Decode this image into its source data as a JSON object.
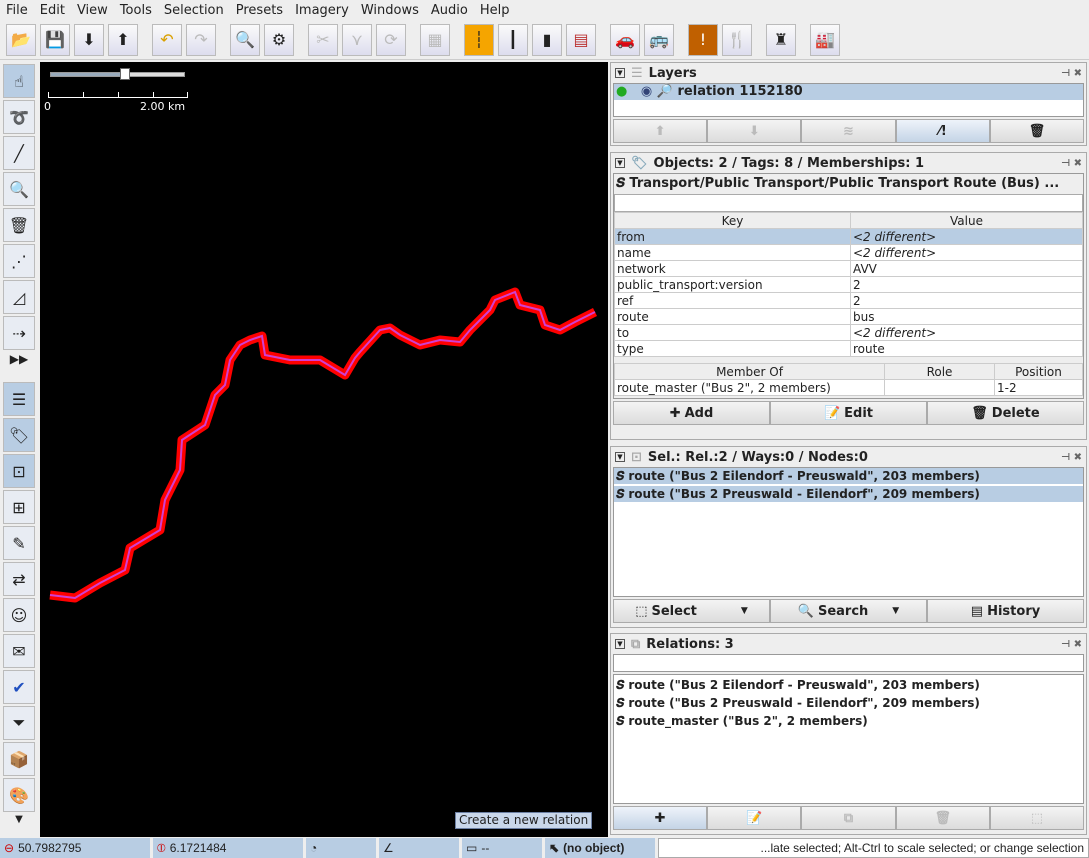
{
  "menu": [
    "File",
    "Edit",
    "View",
    "Tools",
    "Selection",
    "Presets",
    "Imagery",
    "Windows",
    "Audio",
    "Help"
  ],
  "map": {
    "scale_start": "0",
    "scale_end": "2.00 km",
    "zoom_level": 0.55,
    "route_color": "#ff0000",
    "route_inner_color": "#d040d0"
  },
  "layers": {
    "title": "Layers",
    "items": [
      {
        "name": "relation 1152180",
        "visible": true,
        "active": true
      }
    ]
  },
  "objects": {
    "title": "Objects: 2 / Tags: 8 / Memberships: 1",
    "preset": "Transport/Public Transport/Public Transport Route (Bus) ...",
    "headers": [
      "Key",
      "Value"
    ],
    "tags": [
      [
        "from",
        "<2 different>"
      ],
      [
        "name",
        "<2 different>"
      ],
      [
        "network",
        "AVV"
      ],
      [
        "public_transport:version",
        "2"
      ],
      [
        "ref",
        "2"
      ],
      [
        "route",
        "bus"
      ],
      [
        "to",
        "<2 different>"
      ],
      [
        "type",
        "route"
      ]
    ],
    "member_headers": [
      "Member Of",
      "Role",
      "Position"
    ],
    "members": [
      [
        "route_master (\"Bus 2\", 2 members)",
        "",
        "1-2"
      ]
    ],
    "buttons": [
      "Add",
      "Edit",
      "Delete"
    ]
  },
  "selection": {
    "title": "Sel.: Rel.:2 / Ways:0 / Nodes:0",
    "items": [
      "route (\"Bus 2 Eilendorf - Preuswald\", 203 members)",
      "route (\"Bus 2 Preuswald - Eilendorf\", 209 members)"
    ],
    "buttons": [
      "Select",
      "Search",
      "History"
    ]
  },
  "relations": {
    "title": "Relations: 3",
    "filter": "",
    "items": [
      "route (\"Bus 2 Eilendorf - Preuswald\", 203 members)",
      "route (\"Bus 2 Preuswald - Eilendorf\", 209 members)",
      "route_master (\"Bus 2\", 2 members)"
    ]
  },
  "tooltip": "Create a new relation",
  "status": {
    "lat": "50.7982795",
    "lon": "6.1721484",
    "dist": "--",
    "object": "(no object)",
    "message": "...late selected; Alt-Ctrl to scale selected; or change selection"
  }
}
